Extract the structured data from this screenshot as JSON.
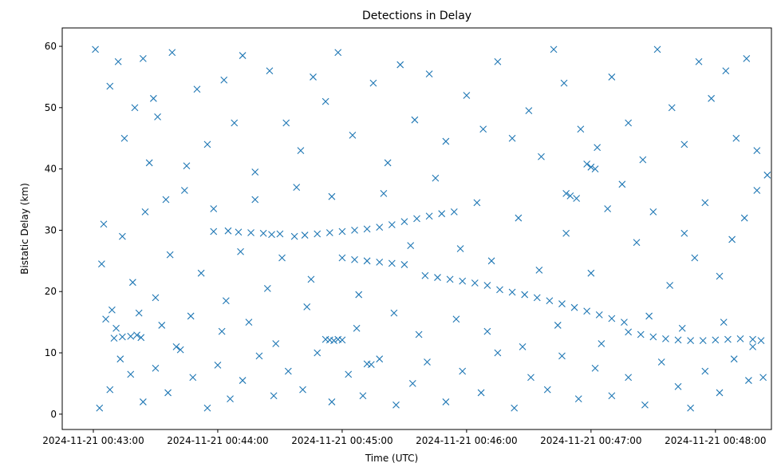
{
  "chart_data": {
    "type": "scatter",
    "title": "Detections in Delay",
    "xlabel": "Time (UTC)",
    "ylabel": "Bistatic Delay (km)",
    "marker": "x",
    "color": "#1f77b4",
    "grid": false,
    "xlim": [
      "2024-11-21 00:42:45",
      "2024-11-21 00:48:27"
    ],
    "ylim": [
      -2.5,
      63
    ],
    "x_ticks": [
      "2024-11-21 00:43:00",
      "2024-11-21 00:44:00",
      "2024-11-21 00:45:00",
      "2024-11-21 00:46:00",
      "2024-11-21 00:47:00",
      "2024-11-21 00:48:00"
    ],
    "y_ticks": [
      0,
      10,
      20,
      30,
      40,
      50,
      60
    ],
    "series": [
      {
        "name": "",
        "points": [
          [
            "2024-11-21 00:43:10",
            12.4
          ],
          [
            "2024-11-21 00:43:14",
            12.6
          ],
          [
            "2024-11-21 00:43:18",
            12.7
          ],
          [
            "2024-11-21 00:43:21",
            12.9
          ],
          [
            "2024-11-21 00:43:23",
            12.5
          ],
          [
            "2024-11-21 00:44:52",
            12.2
          ],
          [
            "2024-11-21 00:44:54",
            12.1
          ],
          [
            "2024-11-21 00:44:56",
            12.0
          ],
          [
            "2024-11-21 00:44:58",
            12.2
          ],
          [
            "2024-11-21 00:45:00",
            12.1
          ],
          [
            "2024-11-21 00:45:12",
            8.2
          ],
          [
            "2024-11-21 00:45:14",
            8.1
          ],
          [
            "2024-11-21 00:43:58",
            29.8
          ],
          [
            "2024-11-21 00:44:05",
            29.9
          ],
          [
            "2024-11-21 00:44:10",
            29.7
          ],
          [
            "2024-11-21 00:44:16",
            29.6
          ],
          [
            "2024-11-21 00:44:22",
            29.5
          ],
          [
            "2024-11-21 00:44:26",
            29.3
          ],
          [
            "2024-11-21 00:44:30",
            29.4
          ],
          [
            "2024-11-21 00:44:37",
            29.0
          ],
          [
            "2024-11-21 00:44:42",
            29.2
          ],
          [
            "2024-11-21 00:44:48",
            29.4
          ],
          [
            "2024-11-21 00:44:54",
            29.6
          ],
          [
            "2024-11-21 00:45:00",
            29.8
          ],
          [
            "2024-11-21 00:45:06",
            30.0
          ],
          [
            "2024-11-21 00:45:12",
            30.2
          ],
          [
            "2024-11-21 00:45:18",
            30.5
          ],
          [
            "2024-11-21 00:45:24",
            30.9
          ],
          [
            "2024-11-21 00:45:30",
            31.4
          ],
          [
            "2024-11-21 00:45:36",
            31.9
          ],
          [
            "2024-11-21 00:45:42",
            32.3
          ],
          [
            "2024-11-21 00:45:48",
            32.7
          ],
          [
            "2024-11-21 00:45:54",
            33.0
          ],
          [
            "2024-11-21 00:45:00",
            25.5
          ],
          [
            "2024-11-21 00:45:06",
            25.2
          ],
          [
            "2024-11-21 00:45:12",
            25.0
          ],
          [
            "2024-11-21 00:45:18",
            24.8
          ],
          [
            "2024-11-21 00:45:24",
            24.6
          ],
          [
            "2024-11-21 00:45:30",
            24.4
          ],
          [
            "2024-11-21 00:45:40",
            22.6
          ],
          [
            "2024-11-21 00:45:46",
            22.3
          ],
          [
            "2024-11-21 00:45:52",
            22.0
          ],
          [
            "2024-11-21 00:45:58",
            21.7
          ],
          [
            "2024-11-21 00:46:04",
            21.4
          ],
          [
            "2024-11-21 00:46:10",
            21.0
          ],
          [
            "2024-11-21 00:46:16",
            20.3
          ],
          [
            "2024-11-21 00:46:22",
            19.9
          ],
          [
            "2024-11-21 00:46:28",
            19.5
          ],
          [
            "2024-11-21 00:46:34",
            19.0
          ],
          [
            "2024-11-21 00:46:40",
            18.5
          ],
          [
            "2024-11-21 00:46:46",
            18.0
          ],
          [
            "2024-11-21 00:46:52",
            17.4
          ],
          [
            "2024-11-21 00:46:58",
            16.8
          ],
          [
            "2024-11-21 00:47:04",
            16.2
          ],
          [
            "2024-11-21 00:47:10",
            15.6
          ],
          [
            "2024-11-21 00:47:16",
            15.0
          ],
          [
            "2024-11-21 00:46:48",
            36.0
          ],
          [
            "2024-11-21 00:46:50",
            35.6
          ],
          [
            "2024-11-21 00:46:53",
            35.2
          ],
          [
            "2024-11-21 00:47:18",
            13.4
          ],
          [
            "2024-11-21 00:47:24",
            13.0
          ],
          [
            "2024-11-21 00:47:30",
            12.6
          ],
          [
            "2024-11-21 00:47:36",
            12.3
          ],
          [
            "2024-11-21 00:47:42",
            12.1
          ],
          [
            "2024-11-21 00:47:48",
            12.0
          ],
          [
            "2024-11-21 00:47:54",
            12.0
          ],
          [
            "2024-11-21 00:48:00",
            12.1
          ],
          [
            "2024-11-21 00:48:06",
            12.2
          ],
          [
            "2024-11-21 00:48:12",
            12.3
          ],
          [
            "2024-11-21 00:48:18",
            12.2
          ],
          [
            "2024-11-21 00:48:22",
            12.0
          ],
          [
            "2024-11-21 00:46:58",
            40.8
          ],
          [
            "2024-11-21 00:47:00",
            40.3
          ],
          [
            "2024-11-21 00:47:02",
            40.0
          ],
          [
            "2024-11-21 00:43:01",
            59.5
          ],
          [
            "2024-11-21 00:43:05",
            31.0
          ],
          [
            "2024-11-21 00:43:08",
            53.5
          ],
          [
            "2024-11-21 00:43:12",
            57.5
          ],
          [
            "2024-11-21 00:43:15",
            45.0
          ],
          [
            "2024-11-21 00:43:20",
            50.0
          ],
          [
            "2024-11-21 00:43:24",
            58.0
          ],
          [
            "2024-11-21 00:43:27",
            41.0
          ],
          [
            "2024-11-21 00:43:29",
            51.5
          ],
          [
            "2024-11-21 00:43:31",
            48.5
          ],
          [
            "2024-11-21 00:43:35",
            35.0
          ],
          [
            "2024-11-21 00:43:38",
            59.0
          ],
          [
            "2024-11-21 00:43:45",
            40.5
          ],
          [
            "2024-11-21 00:43:50",
            53.0
          ],
          [
            "2024-11-21 00:43:55",
            44.0
          ],
          [
            "2024-11-21 00:44:03",
            54.5
          ],
          [
            "2024-11-21 00:44:08",
            47.5
          ],
          [
            "2024-11-21 00:44:12",
            58.5
          ],
          [
            "2024-11-21 00:44:18",
            39.5
          ],
          [
            "2024-11-21 00:44:25",
            56.0
          ],
          [
            "2024-11-21 00:44:33",
            47.5
          ],
          [
            "2024-11-21 00:44:40",
            43.0
          ],
          [
            "2024-11-21 00:44:46",
            55.0
          ],
          [
            "2024-11-21 00:44:52",
            51.0
          ],
          [
            "2024-11-21 00:44:58",
            59.0
          ],
          [
            "2024-11-21 00:45:05",
            45.5
          ],
          [
            "2024-11-21 00:45:15",
            54.0
          ],
          [
            "2024-11-21 00:45:22",
            41.0
          ],
          [
            "2024-11-21 00:45:28",
            57.0
          ],
          [
            "2024-11-21 00:45:35",
            48.0
          ],
          [
            "2024-11-21 00:45:42",
            55.5
          ],
          [
            "2024-11-21 00:45:50",
            44.5
          ],
          [
            "2024-11-21 00:46:00",
            52.0
          ],
          [
            "2024-11-21 00:46:08",
            46.5
          ],
          [
            "2024-11-21 00:46:15",
            57.5
          ],
          [
            "2024-11-21 00:46:22",
            45.0
          ],
          [
            "2024-11-21 00:46:30",
            49.5
          ],
          [
            "2024-11-21 00:46:36",
            42.0
          ],
          [
            "2024-11-21 00:46:42",
            59.5
          ],
          [
            "2024-11-21 00:46:47",
            54.0
          ],
          [
            "2024-11-21 00:46:55",
            46.5
          ],
          [
            "2024-11-21 00:47:03",
            43.5
          ],
          [
            "2024-11-21 00:47:10",
            55.0
          ],
          [
            "2024-11-21 00:47:18",
            47.5
          ],
          [
            "2024-11-21 00:47:25",
            41.5
          ],
          [
            "2024-11-21 00:47:32",
            59.5
          ],
          [
            "2024-11-21 00:47:39",
            50.0
          ],
          [
            "2024-11-21 00:47:45",
            44.0
          ],
          [
            "2024-11-21 00:47:52",
            57.5
          ],
          [
            "2024-11-21 00:47:58",
            51.5
          ],
          [
            "2024-11-21 00:48:05",
            56.0
          ],
          [
            "2024-11-21 00:48:10",
            45.0
          ],
          [
            "2024-11-21 00:48:15",
            58.0
          ],
          [
            "2024-11-21 00:48:20",
            43.0
          ],
          [
            "2024-11-21 00:43:04",
            24.5
          ],
          [
            "2024-11-21 00:43:09",
            17.0
          ],
          [
            "2024-11-21 00:43:14",
            29.0
          ],
          [
            "2024-11-21 00:43:19",
            21.5
          ],
          [
            "2024-11-21 00:43:25",
            33.0
          ],
          [
            "2024-11-21 00:43:30",
            19.0
          ],
          [
            "2024-11-21 00:43:37",
            26.0
          ],
          [
            "2024-11-21 00:43:44",
            36.5
          ],
          [
            "2024-11-21 00:43:52",
            23.0
          ],
          [
            "2024-11-21 00:43:58",
            33.5
          ],
          [
            "2024-11-21 00:44:04",
            18.5
          ],
          [
            "2024-11-21 00:44:11",
            26.5
          ],
          [
            "2024-11-21 00:44:18",
            35.0
          ],
          [
            "2024-11-21 00:44:24",
            20.5
          ],
          [
            "2024-11-21 00:44:31",
            25.5
          ],
          [
            "2024-11-21 00:44:38",
            37.0
          ],
          [
            "2024-11-21 00:44:45",
            22.0
          ],
          [
            "2024-11-21 00:44:55",
            35.5
          ],
          [
            "2024-11-21 00:45:08",
            19.5
          ],
          [
            "2024-11-21 00:45:20",
            36.0
          ],
          [
            "2024-11-21 00:45:33",
            27.5
          ],
          [
            "2024-11-21 00:45:45",
            38.5
          ],
          [
            "2024-11-21 00:45:57",
            27.0
          ],
          [
            "2024-11-21 00:46:05",
            34.5
          ],
          [
            "2024-11-21 00:46:12",
            25.0
          ],
          [
            "2024-11-21 00:46:25",
            32.0
          ],
          [
            "2024-11-21 00:46:35",
            23.5
          ],
          [
            "2024-11-21 00:46:48",
            29.5
          ],
          [
            "2024-11-21 00:47:00",
            23.0
          ],
          [
            "2024-11-21 00:47:08",
            33.5
          ],
          [
            "2024-11-21 00:47:15",
            37.5
          ],
          [
            "2024-11-21 00:47:22",
            28.0
          ],
          [
            "2024-11-21 00:47:30",
            33.0
          ],
          [
            "2024-11-21 00:47:38",
            21.0
          ],
          [
            "2024-11-21 00:47:45",
            29.5
          ],
          [
            "2024-11-21 00:47:50",
            25.5
          ],
          [
            "2024-11-21 00:47:55",
            34.5
          ],
          [
            "2024-11-21 00:48:02",
            22.5
          ],
          [
            "2024-11-21 00:48:08",
            28.5
          ],
          [
            "2024-11-21 00:48:14",
            32.0
          ],
          [
            "2024-11-21 00:48:20",
            36.5
          ],
          [
            "2024-11-21 00:48:25",
            39.0
          ],
          [
            "2024-11-21 00:43:03",
            1.0
          ],
          [
            "2024-11-21 00:43:08",
            4.0
          ],
          [
            "2024-11-21 00:43:13",
            9.0
          ],
          [
            "2024-11-21 00:43:18",
            6.5
          ],
          [
            "2024-11-21 00:43:24",
            2.0
          ],
          [
            "2024-11-21 00:43:30",
            7.5
          ],
          [
            "2024-11-21 00:43:36",
            3.5
          ],
          [
            "2024-11-21 00:43:42",
            10.5
          ],
          [
            "2024-11-21 00:43:48",
            6.0
          ],
          [
            "2024-11-21 00:43:55",
            1.0
          ],
          [
            "2024-11-21 00:44:00",
            8.0
          ],
          [
            "2024-11-21 00:44:06",
            2.5
          ],
          [
            "2024-11-21 00:44:12",
            5.5
          ],
          [
            "2024-11-21 00:44:20",
            9.5
          ],
          [
            "2024-11-21 00:44:27",
            3.0
          ],
          [
            "2024-11-21 00:44:34",
            7.0
          ],
          [
            "2024-11-21 00:44:41",
            4.0
          ],
          [
            "2024-11-21 00:44:48",
            10.0
          ],
          [
            "2024-11-21 00:44:55",
            2.0
          ],
          [
            "2024-11-21 00:45:03",
            6.5
          ],
          [
            "2024-11-21 00:45:10",
            3.0
          ],
          [
            "2024-11-21 00:45:18",
            9.0
          ],
          [
            "2024-11-21 00:45:26",
            1.5
          ],
          [
            "2024-11-21 00:45:34",
            5.0
          ],
          [
            "2024-11-21 00:45:41",
            8.5
          ],
          [
            "2024-11-21 00:45:50",
            2.0
          ],
          [
            "2024-11-21 00:45:58",
            7.0
          ],
          [
            "2024-11-21 00:46:07",
            3.5
          ],
          [
            "2024-11-21 00:46:15",
            10.0
          ],
          [
            "2024-11-21 00:46:23",
            1.0
          ],
          [
            "2024-11-21 00:46:31",
            6.0
          ],
          [
            "2024-11-21 00:46:39",
            4.0
          ],
          [
            "2024-11-21 00:46:46",
            9.5
          ],
          [
            "2024-11-21 00:46:54",
            2.5
          ],
          [
            "2024-11-21 00:47:02",
            7.5
          ],
          [
            "2024-11-21 00:47:10",
            3.0
          ],
          [
            "2024-11-21 00:47:18",
            6.0
          ],
          [
            "2024-11-21 00:47:26",
            1.5
          ],
          [
            "2024-11-21 00:47:34",
            8.5
          ],
          [
            "2024-11-21 00:47:42",
            4.5
          ],
          [
            "2024-11-21 00:47:48",
            1.0
          ],
          [
            "2024-11-21 00:47:55",
            7.0
          ],
          [
            "2024-11-21 00:48:02",
            3.5
          ],
          [
            "2024-11-21 00:48:09",
            9.0
          ],
          [
            "2024-11-21 00:48:16",
            5.5
          ],
          [
            "2024-11-21 00:48:23",
            6.0
          ],
          [
            "2024-11-21 00:43:06",
            15.5
          ],
          [
            "2024-11-21 00:43:11",
            14.0
          ],
          [
            "2024-11-21 00:43:22",
            16.5
          ],
          [
            "2024-11-21 00:43:33",
            14.5
          ],
          [
            "2024-11-21 00:43:40",
            11.0
          ],
          [
            "2024-11-21 00:43:47",
            16.0
          ],
          [
            "2024-11-21 00:44:02",
            13.5
          ],
          [
            "2024-11-21 00:44:15",
            15.0
          ],
          [
            "2024-11-21 00:44:28",
            11.5
          ],
          [
            "2024-11-21 00:44:43",
            17.5
          ],
          [
            "2024-11-21 00:45:07",
            14.0
          ],
          [
            "2024-11-21 00:45:25",
            16.5
          ],
          [
            "2024-11-21 00:45:37",
            13.0
          ],
          [
            "2024-11-21 00:45:55",
            15.5
          ],
          [
            "2024-11-21 00:46:10",
            13.5
          ],
          [
            "2024-11-21 00:46:27",
            11.0
          ],
          [
            "2024-11-21 00:46:44",
            14.5
          ],
          [
            "2024-11-21 00:47:05",
            11.5
          ],
          [
            "2024-11-21 00:47:28",
            16.0
          ],
          [
            "2024-11-21 00:47:44",
            14.0
          ],
          [
            "2024-11-21 00:48:04",
            15.0
          ],
          [
            "2024-11-21 00:48:18",
            11.0
          ]
        ]
      }
    ]
  }
}
